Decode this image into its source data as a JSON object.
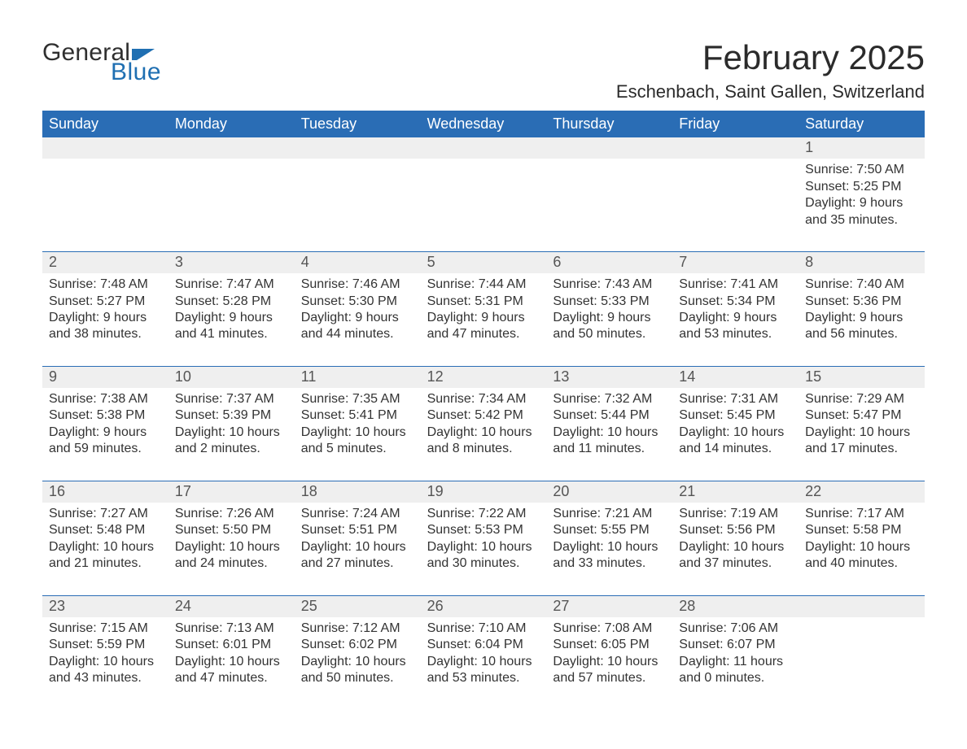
{
  "logo": {
    "word1": "General",
    "word2": "Blue"
  },
  "header": {
    "month_title": "February 2025",
    "location": "Eschenbach, Saint Gallen, Switzerland"
  },
  "colors": {
    "brand_blue": "#2a6db5",
    "logo_blue": "#1f6fb2",
    "strip_bg": "#efefef",
    "text": "#333333",
    "daynum_text": "#555555",
    "background": "#ffffff"
  },
  "weekdays": [
    "Sunday",
    "Monday",
    "Tuesday",
    "Wednesday",
    "Thursday",
    "Friday",
    "Saturday"
  ],
  "weeks": [
    [
      {
        "n": "",
        "lines": []
      },
      {
        "n": "",
        "lines": []
      },
      {
        "n": "",
        "lines": []
      },
      {
        "n": "",
        "lines": []
      },
      {
        "n": "",
        "lines": []
      },
      {
        "n": "",
        "lines": []
      },
      {
        "n": "1",
        "lines": [
          "Sunrise: 7:50 AM",
          "Sunset: 5:25 PM",
          "Daylight: 9 hours and 35 minutes."
        ]
      }
    ],
    [
      {
        "n": "2",
        "lines": [
          "Sunrise: 7:48 AM",
          "Sunset: 5:27 PM",
          "Daylight: 9 hours and 38 minutes."
        ]
      },
      {
        "n": "3",
        "lines": [
          "Sunrise: 7:47 AM",
          "Sunset: 5:28 PM",
          "Daylight: 9 hours and 41 minutes."
        ]
      },
      {
        "n": "4",
        "lines": [
          "Sunrise: 7:46 AM",
          "Sunset: 5:30 PM",
          "Daylight: 9 hours and 44 minutes."
        ]
      },
      {
        "n": "5",
        "lines": [
          "Sunrise: 7:44 AM",
          "Sunset: 5:31 PM",
          "Daylight: 9 hours and 47 minutes."
        ]
      },
      {
        "n": "6",
        "lines": [
          "Sunrise: 7:43 AM",
          "Sunset: 5:33 PM",
          "Daylight: 9 hours and 50 minutes."
        ]
      },
      {
        "n": "7",
        "lines": [
          "Sunrise: 7:41 AM",
          "Sunset: 5:34 PM",
          "Daylight: 9 hours and 53 minutes."
        ]
      },
      {
        "n": "8",
        "lines": [
          "Sunrise: 7:40 AM",
          "Sunset: 5:36 PM",
          "Daylight: 9 hours and 56 minutes."
        ]
      }
    ],
    [
      {
        "n": "9",
        "lines": [
          "Sunrise: 7:38 AM",
          "Sunset: 5:38 PM",
          "Daylight: 9 hours and 59 minutes."
        ]
      },
      {
        "n": "10",
        "lines": [
          "Sunrise: 7:37 AM",
          "Sunset: 5:39 PM",
          "Daylight: 10 hours and 2 minutes."
        ]
      },
      {
        "n": "11",
        "lines": [
          "Sunrise: 7:35 AM",
          "Sunset: 5:41 PM",
          "Daylight: 10 hours and 5 minutes."
        ]
      },
      {
        "n": "12",
        "lines": [
          "Sunrise: 7:34 AM",
          "Sunset: 5:42 PM",
          "Daylight: 10 hours and 8 minutes."
        ]
      },
      {
        "n": "13",
        "lines": [
          "Sunrise: 7:32 AM",
          "Sunset: 5:44 PM",
          "Daylight: 10 hours and 11 minutes."
        ]
      },
      {
        "n": "14",
        "lines": [
          "Sunrise: 7:31 AM",
          "Sunset: 5:45 PM",
          "Daylight: 10 hours and 14 minutes."
        ]
      },
      {
        "n": "15",
        "lines": [
          "Sunrise: 7:29 AM",
          "Sunset: 5:47 PM",
          "Daylight: 10 hours and 17 minutes."
        ]
      }
    ],
    [
      {
        "n": "16",
        "lines": [
          "Sunrise: 7:27 AM",
          "Sunset: 5:48 PM",
          "Daylight: 10 hours and 21 minutes."
        ]
      },
      {
        "n": "17",
        "lines": [
          "Sunrise: 7:26 AM",
          "Sunset: 5:50 PM",
          "Daylight: 10 hours and 24 minutes."
        ]
      },
      {
        "n": "18",
        "lines": [
          "Sunrise: 7:24 AM",
          "Sunset: 5:51 PM",
          "Daylight: 10 hours and 27 minutes."
        ]
      },
      {
        "n": "19",
        "lines": [
          "Sunrise: 7:22 AM",
          "Sunset: 5:53 PM",
          "Daylight: 10 hours and 30 minutes."
        ]
      },
      {
        "n": "20",
        "lines": [
          "Sunrise: 7:21 AM",
          "Sunset: 5:55 PM",
          "Daylight: 10 hours and 33 minutes."
        ]
      },
      {
        "n": "21",
        "lines": [
          "Sunrise: 7:19 AM",
          "Sunset: 5:56 PM",
          "Daylight: 10 hours and 37 minutes."
        ]
      },
      {
        "n": "22",
        "lines": [
          "Sunrise: 7:17 AM",
          "Sunset: 5:58 PM",
          "Daylight: 10 hours and 40 minutes."
        ]
      }
    ],
    [
      {
        "n": "23",
        "lines": [
          "Sunrise: 7:15 AM",
          "Sunset: 5:59 PM",
          "Daylight: 10 hours and 43 minutes."
        ]
      },
      {
        "n": "24",
        "lines": [
          "Sunrise: 7:13 AM",
          "Sunset: 6:01 PM",
          "Daylight: 10 hours and 47 minutes."
        ]
      },
      {
        "n": "25",
        "lines": [
          "Sunrise: 7:12 AM",
          "Sunset: 6:02 PM",
          "Daylight: 10 hours and 50 minutes."
        ]
      },
      {
        "n": "26",
        "lines": [
          "Sunrise: 7:10 AM",
          "Sunset: 6:04 PM",
          "Daylight: 10 hours and 53 minutes."
        ]
      },
      {
        "n": "27",
        "lines": [
          "Sunrise: 7:08 AM",
          "Sunset: 6:05 PM",
          "Daylight: 10 hours and 57 minutes."
        ]
      },
      {
        "n": "28",
        "lines": [
          "Sunrise: 7:06 AM",
          "Sunset: 6:07 PM",
          "Daylight: 11 hours and 0 minutes."
        ]
      },
      {
        "n": "",
        "lines": []
      }
    ]
  ]
}
